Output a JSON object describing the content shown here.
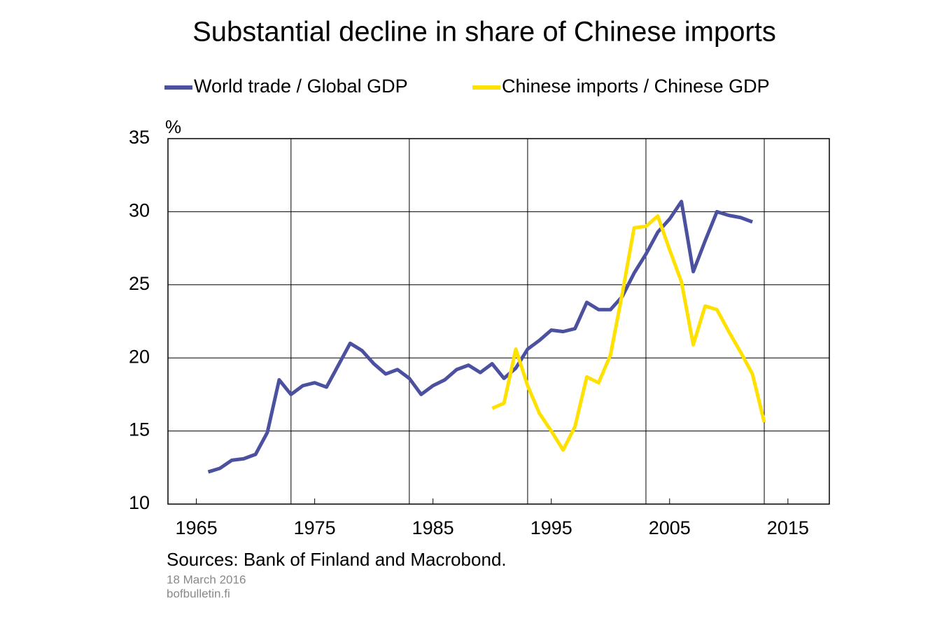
{
  "chart_data": {
    "type": "line",
    "title": "Substantial decline in share of Chinese imports",
    "y_unit": "%",
    "source": "Sources: Bank of Finland and Macrobond.",
    "date": "18 March 2016",
    "site": "bofbulletin.fi",
    "series": [
      {
        "name": "World trade / Global GDP",
        "color": "#4b519f",
        "x": [
          1966,
          1967,
          1968,
          1969,
          1970,
          1971,
          1972,
          1973,
          1974,
          1975,
          1976,
          1977,
          1978,
          1979,
          1980,
          1981,
          1982,
          1983,
          1984,
          1985,
          1986,
          1987,
          1988,
          1989,
          1990,
          1991,
          1992,
          1993,
          1994,
          1995,
          1996,
          1997,
          1998,
          1999,
          2000,
          2001,
          2002,
          2003,
          2004,
          2005,
          2006,
          2007,
          2008,
          2009,
          2010,
          2011,
          2012
        ],
        "values": [
          12.2,
          12.45,
          13.0,
          13.1,
          13.4,
          14.9,
          18.5,
          17.5,
          18.1,
          18.3,
          18.0,
          19.5,
          21.0,
          20.5,
          19.6,
          18.9,
          19.2,
          18.6,
          17.5,
          18.1,
          18.5,
          19.2,
          19.5,
          19.0,
          19.6,
          18.6,
          19.3,
          20.6,
          21.2,
          21.9,
          21.8,
          22.0,
          23.8,
          23.3,
          23.3,
          24.2,
          25.8,
          27.1,
          28.6,
          29.5,
          30.7,
          25.9,
          28.0,
          30.0,
          29.75,
          29.6,
          29.3
        ]
      },
      {
        "name": "Chinese imports / Chinese GDP",
        "color": "#ffe100",
        "x": [
          1990,
          1991,
          1992,
          1993,
          1994,
          1995,
          1996,
          1997,
          1998,
          1999,
          2000,
          2001,
          2002,
          2003,
          2004,
          2005,
          2006,
          2007,
          2008,
          2009,
          2010,
          2011,
          2012,
          2013
        ],
        "values": [
          16.55,
          16.9,
          20.6,
          18.1,
          16.2,
          15.0,
          13.7,
          15.3,
          18.7,
          18.3,
          20.2,
          24.4,
          28.9,
          29.0,
          29.7,
          27.4,
          25.2,
          20.9,
          23.55,
          23.3,
          21.8,
          20.4,
          18.9,
          15.6
        ]
      }
    ],
    "xlim": [
      1962.6,
      2018.5
    ],
    "xticks": [
      1965,
      1975,
      1985,
      1995,
      2005,
      2015
    ],
    "xgrid": [
      1973,
      1983,
      1993,
      2003,
      2013
    ],
    "ylim": [
      10,
      35
    ],
    "yticks": [
      10,
      15,
      20,
      25,
      30,
      35
    ],
    "grid": true
  }
}
